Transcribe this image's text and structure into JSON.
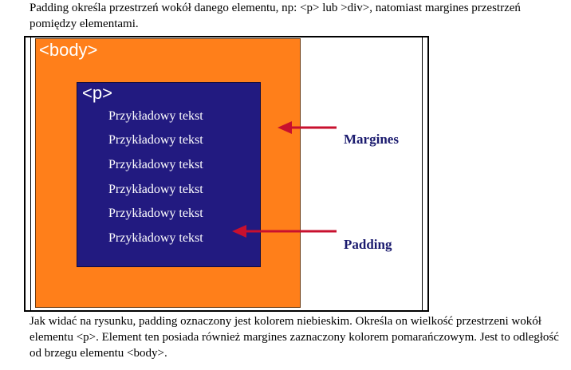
{
  "intro_text": "Padding określa przestrzeń wokół danego elementu, np: <p> lub >div>, natomiast margines przestrzeń pomiędzy elementami.",
  "figure": {
    "body_tag": "<body>",
    "p_tag": "<p>",
    "sample_lines": [
      "Przykładowy tekst",
      "Przykładowy tekst",
      "Przykładowy tekst",
      "Przykładowy tekst",
      "Przykładowy tekst",
      "Przykładowy tekst"
    ],
    "margin_label": "Margines",
    "padding_label": "Padding",
    "colors": {
      "margin": "#ff7f1a",
      "padding": "#221a80",
      "arrow": "#c8102e"
    }
  },
  "outro_text": "Jak widać na rysunku, padding oznaczony jest kolorem niebieskim. Określa on wielkość przestrzeni wokół elementu <p>. Element ten posiada również margines zaznaczony kolorem pomarańczowym. Jest to odległość od brzegu elementu <body>."
}
